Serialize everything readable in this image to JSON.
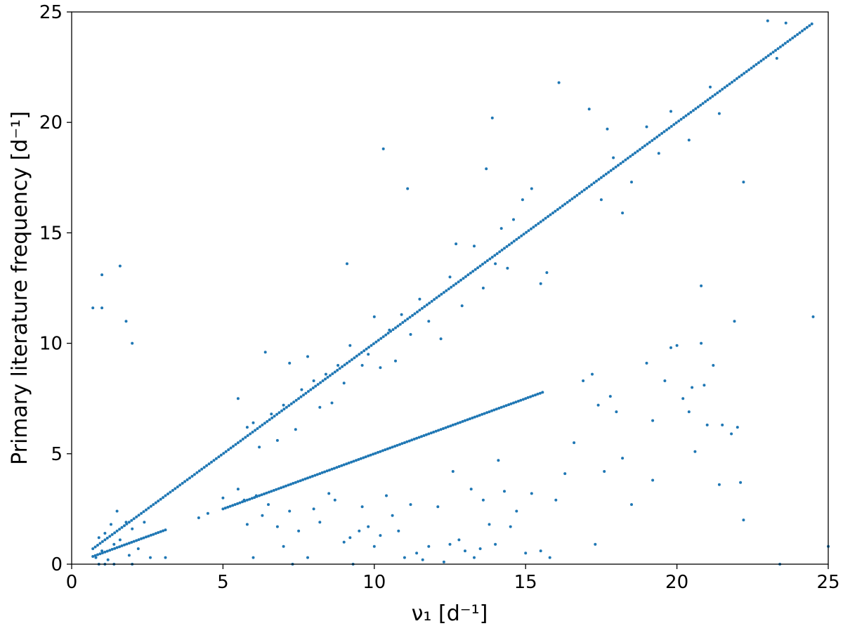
{
  "chart_data": {
    "type": "scatter",
    "xlabel": "ν₁ [d⁻¹]",
    "ylabel": "Primary literature frequency [d⁻¹]",
    "xlim": [
      0,
      25
    ],
    "ylim": [
      0,
      25
    ],
    "xticks": [
      0,
      5,
      10,
      15,
      20,
      25
    ],
    "yticks": [
      0,
      5,
      10,
      15,
      20,
      25
    ],
    "grid": false,
    "color": "#1f77b4",
    "lines": [
      {
        "relation": "y = x",
        "x_range": [
          0.7,
          24.5
        ]
      },
      {
        "relation": "y = x / 2",
        "x_range": [
          5.0,
          15.6
        ]
      },
      {
        "relation": "y = x / 2 (low)",
        "x_range": [
          0.7,
          3.1
        ]
      }
    ],
    "points": [
      [
        0.7,
        11.6
      ],
      [
        1.0,
        11.6
      ],
      [
        1.0,
        13.1
      ],
      [
        1.6,
        13.5
      ],
      [
        1.8,
        11.0
      ],
      [
        2.0,
        10.0
      ],
      [
        0.8,
        0.3
      ],
      [
        0.9,
        1.2
      ],
      [
        1.0,
        0.6
      ],
      [
        1.1,
        1.4
      ],
      [
        1.2,
        0.2
      ],
      [
        1.3,
        1.8
      ],
      [
        1.4,
        0.9
      ],
      [
        1.5,
        2.4
      ],
      [
        1.6,
        1.1
      ],
      [
        1.8,
        1.9
      ],
      [
        1.9,
        0.4
      ],
      [
        2.0,
        1.6
      ],
      [
        2.2,
        0.7
      ],
      [
        2.4,
        1.9
      ],
      [
        2.6,
        0.3
      ],
      [
        0.9,
        0.0
      ],
      [
        1.1,
        0.0
      ],
      [
        1.4,
        0.0
      ],
      [
        2.0,
        0.0
      ],
      [
        3.1,
        0.3
      ],
      [
        4.2,
        2.1
      ],
      [
        4.5,
        2.3
      ],
      [
        5.0,
        3.0
      ],
      [
        5.5,
        3.4
      ],
      [
        5.7,
        2.9
      ],
      [
        5.8,
        1.8
      ],
      [
        6.0,
        0.3
      ],
      [
        6.1,
        3.1
      ],
      [
        6.3,
        2.2
      ],
      [
        6.5,
        2.7
      ],
      [
        6.8,
        1.7
      ],
      [
        7.0,
        0.8
      ],
      [
        7.2,
        2.4
      ],
      [
        7.3,
        0.0
      ],
      [
        7.5,
        1.5
      ],
      [
        7.8,
        0.3
      ],
      [
        8.0,
        2.5
      ],
      [
        8.2,
        1.9
      ],
      [
        8.5,
        3.2
      ],
      [
        8.7,
        2.9
      ],
      [
        9.0,
        1.0
      ],
      [
        9.2,
        1.2
      ],
      [
        9.3,
        0.0
      ],
      [
        9.5,
        1.5
      ],
      [
        9.6,
        2.6
      ],
      [
        9.8,
        1.7
      ],
      [
        10.0,
        0.8
      ],
      [
        10.2,
        1.3
      ],
      [
        10.4,
        3.1
      ],
      [
        10.6,
        2.2
      ],
      [
        10.8,
        1.5
      ],
      [
        11.0,
        0.3
      ],
      [
        11.2,
        2.7
      ],
      [
        11.4,
        0.5
      ],
      [
        11.6,
        0.2
      ],
      [
        11.8,
        0.8
      ],
      [
        12.1,
        2.6
      ],
      [
        12.3,
        0.1
      ],
      [
        12.5,
        0.9
      ],
      [
        12.6,
        4.2
      ],
      [
        12.8,
        1.1
      ],
      [
        13.0,
        0.6
      ],
      [
        13.2,
        3.4
      ],
      [
        13.3,
        0.3
      ],
      [
        13.5,
        0.7
      ],
      [
        13.6,
        2.9
      ],
      [
        13.8,
        1.8
      ],
      [
        14.0,
        0.9
      ],
      [
        14.1,
        4.7
      ],
      [
        14.3,
        3.3
      ],
      [
        14.5,
        1.7
      ],
      [
        14.7,
        2.4
      ],
      [
        15.0,
        0.5
      ],
      [
        15.2,
        3.2
      ],
      [
        15.5,
        0.6
      ],
      [
        15.8,
        0.3
      ],
      [
        5.5,
        7.5
      ],
      [
        5.8,
        6.2
      ],
      [
        6.0,
        6.4
      ],
      [
        6.2,
        5.3
      ],
      [
        6.4,
        9.6
      ],
      [
        6.6,
        6.8
      ],
      [
        6.8,
        5.6
      ],
      [
        7.0,
        7.2
      ],
      [
        7.2,
        9.1
      ],
      [
        7.4,
        6.1
      ],
      [
        7.6,
        7.9
      ],
      [
        7.8,
        9.4
      ],
      [
        8.0,
        8.3
      ],
      [
        8.2,
        7.1
      ],
      [
        8.4,
        8.6
      ],
      [
        8.6,
        7.3
      ],
      [
        8.8,
        9.0
      ],
      [
        9.0,
        8.2
      ],
      [
        9.2,
        9.9
      ],
      [
        9.1,
        13.6
      ],
      [
        9.6,
        9.0
      ],
      [
        9.8,
        9.5
      ],
      [
        10.0,
        11.2
      ],
      [
        10.2,
        8.9
      ],
      [
        10.5,
        10.6
      ],
      [
        10.7,
        9.2
      ],
      [
        10.9,
        11.3
      ],
      [
        11.2,
        10.4
      ],
      [
        11.5,
        12.0
      ],
      [
        11.8,
        11.0
      ],
      [
        12.2,
        10.2
      ],
      [
        12.5,
        13.0
      ],
      [
        12.7,
        14.5
      ],
      [
        12.9,
        11.7
      ],
      [
        13.3,
        14.4
      ],
      [
        13.6,
        12.5
      ],
      [
        14.0,
        13.6
      ],
      [
        14.2,
        15.2
      ],
      [
        14.4,
        13.4
      ],
      [
        14.6,
        15.6
      ],
      [
        14.9,
        16.5
      ],
      [
        15.2,
        17.0
      ],
      [
        15.5,
        12.7
      ],
      [
        15.7,
        13.2
      ],
      [
        10.3,
        18.8
      ],
      [
        11.1,
        17.0
      ],
      [
        13.7,
        17.9
      ],
      [
        13.9,
        20.2
      ],
      [
        16.1,
        21.8
      ],
      [
        17.1,
        20.6
      ],
      [
        17.5,
        16.5
      ],
      [
        17.7,
        19.7
      ],
      [
        17.9,
        18.4
      ],
      [
        18.2,
        15.9
      ],
      [
        18.5,
        17.3
      ],
      [
        19.0,
        19.8
      ],
      [
        19.4,
        18.6
      ],
      [
        19.8,
        20.5
      ],
      [
        20.4,
        19.2
      ],
      [
        21.1,
        21.6
      ],
      [
        21.4,
        20.4
      ],
      [
        22.2,
        17.3
      ],
      [
        23.0,
        24.6
      ],
      [
        23.6,
        24.5
      ],
      [
        23.3,
        22.9
      ],
      [
        24.5,
        11.2
      ],
      [
        16.3,
        4.1
      ],
      [
        16.6,
        5.5
      ],
      [
        16.9,
        8.3
      ],
      [
        17.2,
        8.6
      ],
      [
        17.4,
        7.2
      ],
      [
        17.6,
        4.2
      ],
      [
        17.8,
        7.6
      ],
      [
        18.0,
        6.9
      ],
      [
        18.2,
        4.8
      ],
      [
        19.0,
        9.1
      ],
      [
        19.2,
        6.5
      ],
      [
        19.6,
        8.3
      ],
      [
        19.8,
        9.8
      ],
      [
        20.0,
        9.9
      ],
      [
        20.2,
        7.5
      ],
      [
        20.4,
        6.9
      ],
      [
        20.5,
        8.0
      ],
      [
        20.6,
        5.1
      ],
      [
        20.8,
        10.0
      ],
      [
        20.9,
        8.1
      ],
      [
        21.0,
        6.3
      ],
      [
        21.2,
        9.0
      ],
      [
        21.5,
        6.3
      ],
      [
        21.8,
        5.9
      ],
      [
        22.0,
        6.2
      ],
      [
        22.1,
        3.7
      ],
      [
        21.4,
        3.6
      ],
      [
        22.2,
        2.0
      ],
      [
        19.2,
        3.8
      ],
      [
        20.8,
        12.6
      ],
      [
        21.9,
        11.0
      ],
      [
        18.5,
        2.7
      ],
      [
        17.3,
        0.9
      ],
      [
        16.0,
        2.9
      ],
      [
        23.4,
        0.0
      ],
      [
        25.0,
        0.8
      ]
    ]
  }
}
